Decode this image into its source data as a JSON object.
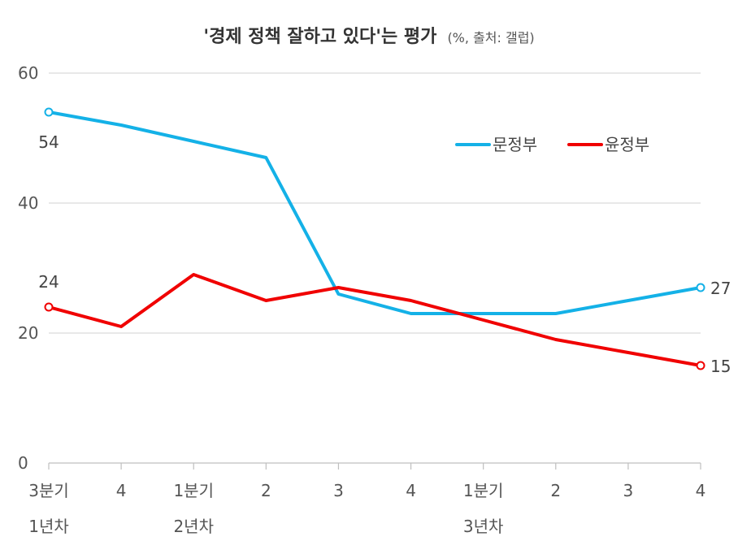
{
  "chart_data": {
    "type": "line",
    "title": "'경제 정책 잘하고 있다'는 평가",
    "subtitle": "(%, 출처: 갤럽)",
    "ylim": [
      0,
      60
    ],
    "yticks": [
      "0",
      "20",
      "40",
      "60"
    ],
    "categories": [
      {
        "label": "3분기",
        "group": "1년차"
      },
      {
        "label": "4",
        "group": ""
      },
      {
        "label": "1분기",
        "group": "2년차"
      },
      {
        "label": "2",
        "group": ""
      },
      {
        "label": "3",
        "group": ""
      },
      {
        "label": "4",
        "group": ""
      },
      {
        "label": "1분기",
        "group": "3년차"
      },
      {
        "label": "2",
        "group": ""
      },
      {
        "label": "3",
        "group": ""
      },
      {
        "label": "4",
        "group": ""
      }
    ],
    "series": [
      {
        "name": "문정부",
        "color": "#14b1e7",
        "values": [
          54,
          52,
          49.5,
          47,
          26,
          23,
          23,
          23,
          25,
          27
        ],
        "labels": [
          {
            "index": 0,
            "text": "54"
          },
          {
            "index": 9,
            "text": "27"
          }
        ]
      },
      {
        "name": "윤정부",
        "color": "#f00000",
        "values": [
          24,
          21,
          29,
          25,
          27,
          25,
          22,
          19,
          17,
          15
        ],
        "labels": [
          {
            "index": 0,
            "text": "24"
          },
          {
            "index": 9,
            "text": "15"
          }
        ]
      }
    ],
    "grid": true,
    "legend": "top-right"
  }
}
